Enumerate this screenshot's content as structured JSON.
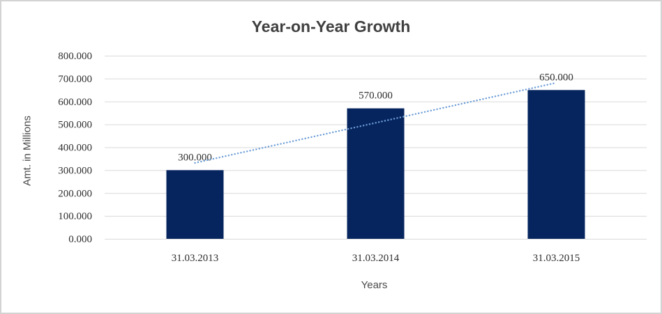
{
  "chart_data": {
    "type": "bar",
    "title": "Year-on-Year Growth",
    "xlabel": "Years",
    "ylabel": "Amt. in Millions",
    "categories": [
      "31.03.2013",
      "31.03.2014",
      "31.03.2015"
    ],
    "values": [
      300,
      570,
      650
    ],
    "data_labels": [
      "300.000",
      "570.000",
      "650.000"
    ],
    "ylim": [
      0,
      800
    ],
    "y_tick_step": 100,
    "y_tick_labels": [
      "0.000",
      "100.000",
      "200.000",
      "300.000",
      "400.000",
      "500.000",
      "600.000",
      "700.000",
      "800.000"
    ],
    "grid": "horizontal",
    "legend": "none",
    "trendline": {
      "type": "linear",
      "style": "dotted",
      "start_value": 331.7,
      "end_value": 681.7
    },
    "style": {
      "bar_color": "#06255f",
      "trendline_color": "#6f9ed8",
      "gridline_color": "#d9d9d9",
      "title_color": "#404040",
      "tick_label_color": "#2e2e2e",
      "axis_title_color": "#4a4a4a",
      "border_color": "#d3d3d3",
      "background_color": "#ffffff"
    }
  }
}
